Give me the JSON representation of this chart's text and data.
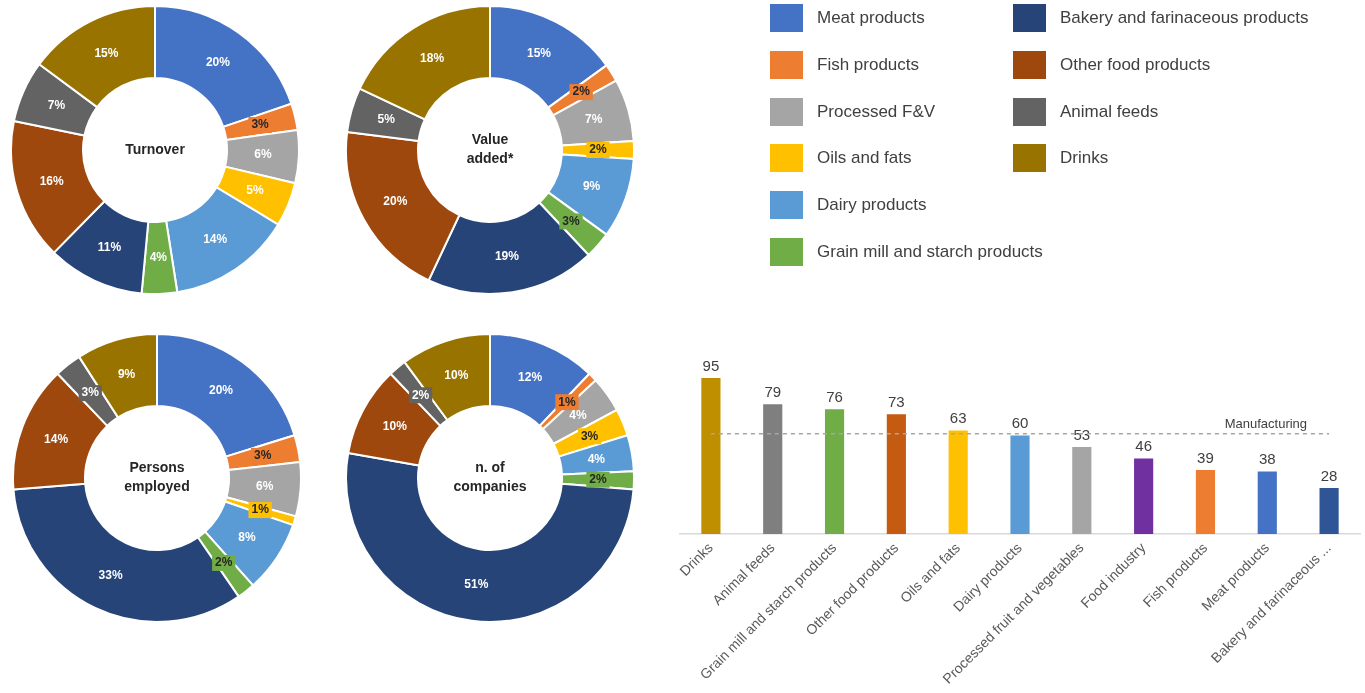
{
  "chart_data": [
    {
      "type": "donut",
      "categories": [
        "Meat products",
        "Fish products",
        "Processed F&V",
        "Oils and fats",
        "Dairy products",
        "Grain mill and starch products",
        "Bakery and farinaceous products",
        "Other food products",
        "Animal feeds",
        "Drinks"
      ],
      "colors": [
        "#4472c4",
        "#ed7d31",
        "#a5a5a5",
        "#ffc000",
        "#5b9bd5",
        "#70ad47",
        "#264478",
        "#9e480e",
        "#636363",
        "#997300"
      ],
      "legend": "top right",
      "series": [
        {
          "name": "Turnover",
          "values": [
            20,
            3,
            6,
            5,
            14,
            4,
            11,
            16,
            7,
            15
          ],
          "value_labels": [
            "20%",
            "3%",
            "6%",
            "5%",
            "14%",
            "4%",
            "11%",
            "16%",
            "7%",
            "15%"
          ]
        },
        {
          "name": "Value added*",
          "values": [
            15,
            2,
            7,
            2,
            9,
            3,
            19,
            20,
            5,
            18
          ],
          "value_labels": [
            "15%",
            "2%",
            "7%",
            "2%",
            "9%",
            "3%",
            "19%",
            "20%",
            "5%",
            "18%"
          ]
        },
        {
          "name": "Persons employed",
          "values": [
            20,
            3,
            6,
            1,
            8,
            2,
            33,
            14,
            3,
            9
          ],
          "value_labels": [
            "20%",
            "3%",
            "6%",
            "1%",
            "8%",
            "2%",
            "33%",
            "14%",
            "3%",
            "9%"
          ]
        },
        {
          "name": "n. of companies",
          "values": [
            12,
            1,
            4,
            3,
            4,
            2,
            51,
            10,
            2,
            10
          ],
          "value_labels": [
            "12%",
            "1%",
            "4%",
            "3%",
            "4%",
            "2%",
            "51%",
            "10%",
            "2%",
            "10%"
          ]
        }
      ]
    },
    {
      "type": "bar",
      "categories": [
        "Drinks",
        "Animal feeds",
        "Grain mill and starch products",
        "Other food products",
        "Oils and fats",
        "Dairy products",
        "Processed fruit and vegetables",
        "Food industry",
        "Fish products",
        "Meat products",
        "Bakery and farinaceous ..."
      ],
      "values": [
        95,
        79,
        76,
        73,
        63,
        60,
        53,
        46,
        39,
        38,
        28
      ],
      "colors": [
        "#bf8f00",
        "#7f7f7f",
        "#70ad47",
        "#c55a11",
        "#ffc000",
        "#5b9bd5",
        "#a5a5a5",
        "#7030a0",
        "#ed7d31",
        "#4472c4",
        "#2f5597"
      ],
      "data_labels": true,
      "ref_lines": [
        {
          "axis": "y",
          "value": 61,
          "label": "Manufacturing",
          "color": "#a6a6a6",
          "line_style": "dashed"
        }
      ]
    }
  ]
}
